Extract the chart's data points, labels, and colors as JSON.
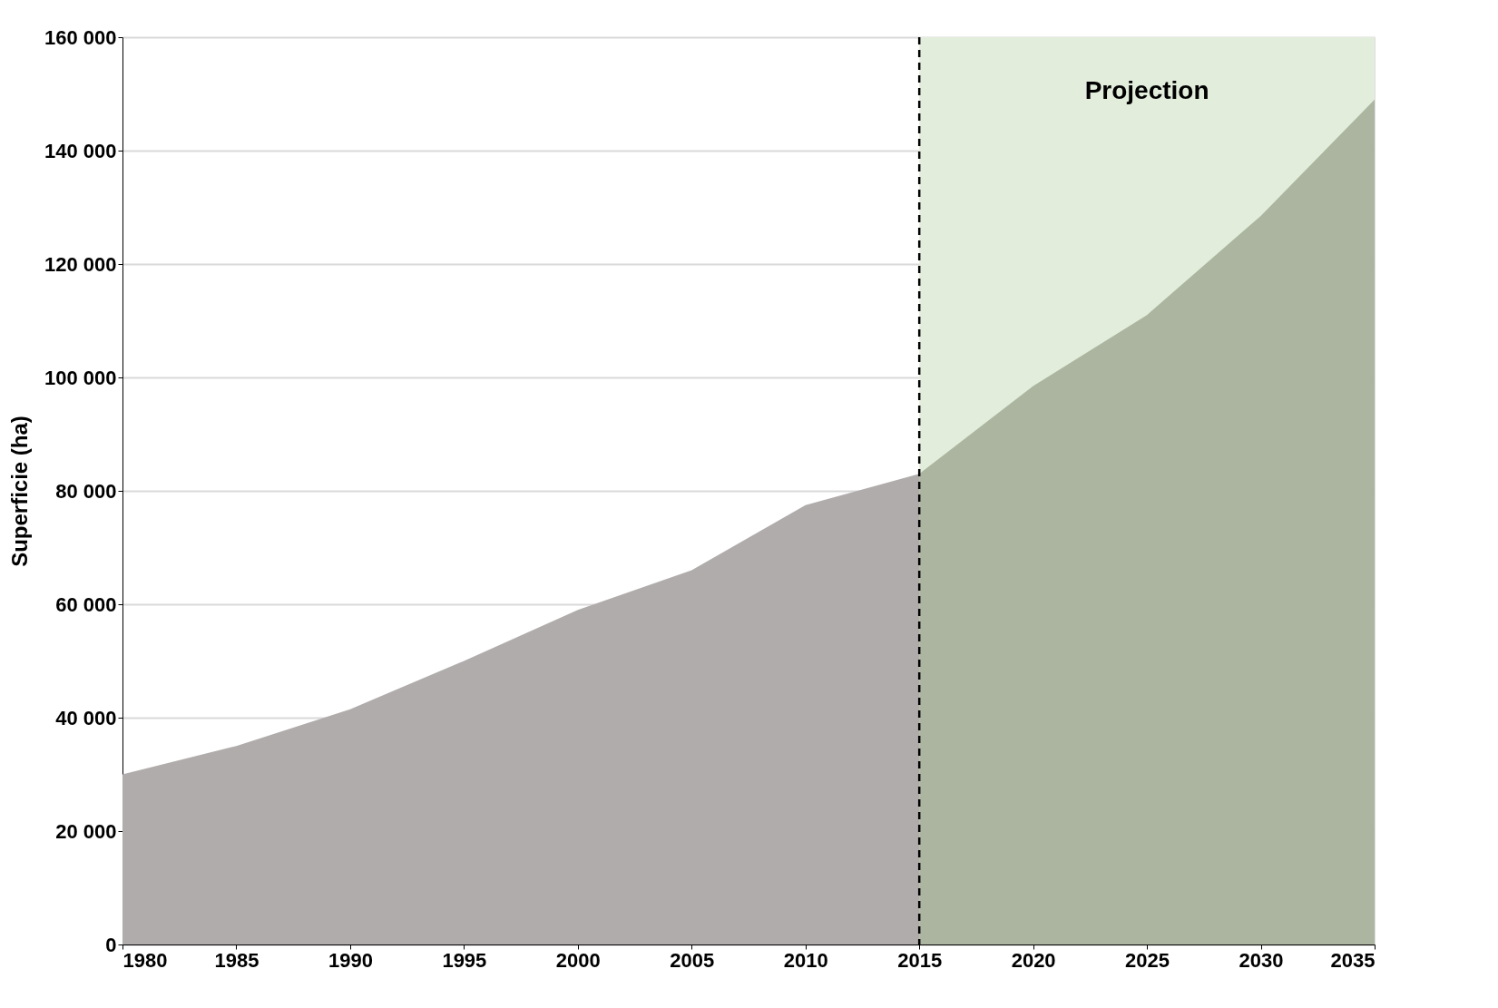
{
  "chart_data": {
    "type": "area",
    "ylabel": "Superficie (ha)",
    "series": [
      {
        "color": "#b0acab",
        "x": [
          1980,
          1985,
          1990,
          1995,
          2000,
          2005,
          2010,
          2015
        ],
        "values": [
          30000,
          35000,
          41500,
          50000,
          59000,
          66000,
          77500,
          83000
        ]
      },
      {
        "color": "#acb5a0",
        "x": [
          2015,
          2020,
          2025,
          2030,
          2035
        ],
        "values": [
          83000,
          98500,
          111000,
          128500,
          149000
        ]
      }
    ],
    "xlim": [
      1980,
      2035
    ],
    "xticks": [
      1980,
      1985,
      1990,
      1995,
      2000,
      2005,
      2010,
      2015,
      2020,
      2025,
      2030,
      2035
    ],
    "ylim": [
      0,
      160000
    ],
    "yticks": [
      0,
      {
        "value": 20000,
        "label": "20 000"
      },
      {
        "value": 40000,
        "label": "40 000"
      },
      {
        "value": 60000,
        "label": "60 000"
      },
      {
        "value": 80000,
        "label": "80 000"
      },
      {
        "value": 100000,
        "label": "100 000"
      },
      {
        "value": 120000,
        "label": "120 000"
      },
      {
        "value": 140000,
        "label": "140 000"
      },
      {
        "value": 160000,
        "label": "160 000"
      }
    ],
    "bands": [
      {
        "axis": "x",
        "from": 2015,
        "to": 2035,
        "label": "Projection",
        "color": "#e2eedb"
      }
    ],
    "ref_lines": [
      {
        "axis": "x",
        "value": 2015,
        "line_style": "dashed",
        "color": "#000000"
      }
    ],
    "grid": "y"
  }
}
